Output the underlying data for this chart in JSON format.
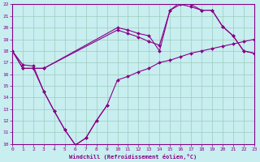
{
  "xlabel": "Windchill (Refroidissement éolien,°C)",
  "xlim": [
    0,
    23
  ],
  "ylim": [
    10,
    22
  ],
  "xticks": [
    0,
    1,
    2,
    3,
    4,
    5,
    6,
    7,
    8,
    9,
    10,
    11,
    12,
    13,
    14,
    15,
    16,
    17,
    18,
    19,
    20,
    21,
    22,
    23
  ],
  "yticks": [
    10,
    11,
    12,
    13,
    14,
    15,
    16,
    17,
    18,
    19,
    20,
    21,
    22
  ],
  "line_color": "#880088",
  "bg_color": "#c8eef0",
  "grid_color": "#99ccbb",
  "line1_x": [
    0,
    1,
    2,
    3,
    10,
    11,
    12,
    13,
    14,
    15,
    16,
    17,
    18,
    19,
    20,
    21,
    22,
    23
  ],
  "line1_y": [
    18,
    16.5,
    16.5,
    16.5,
    19.8,
    19.5,
    19.2,
    18.8,
    18.5,
    21.5,
    22.2,
    22.0,
    21.5,
    21.5,
    20.1,
    19.3,
    18.0,
    17.8
  ],
  "line2_x": [
    0,
    1,
    2,
    3,
    10,
    11,
    12,
    13,
    14,
    15,
    16,
    17,
    18,
    19,
    20,
    21,
    22,
    23
  ],
  "line2_y": [
    18,
    16.5,
    16.5,
    16.5,
    20.0,
    19.8,
    19.5,
    19.3,
    18.0,
    21.5,
    22.0,
    21.8,
    21.5,
    21.5,
    20.1,
    19.3,
    18.0,
    17.8
  ],
  "line3_x": [
    0,
    1,
    2,
    3,
    4,
    5,
    6,
    7,
    8,
    9,
    10,
    11,
    12,
    13,
    14,
    15,
    16,
    17,
    18,
    19,
    20,
    21,
    22,
    23
  ],
  "line3_y": [
    18,
    16.8,
    16.7,
    14.5,
    12.8,
    11.2,
    9.9,
    10.5,
    12.0,
    13.3,
    15.5,
    15.8,
    16.2,
    16.5,
    17.0,
    17.2,
    17.5,
    17.8,
    18.0,
    18.2,
    18.4,
    18.6,
    18.8,
    19.0
  ],
  "line4_x": [
    2,
    3,
    4,
    5,
    6,
    7,
    8,
    9
  ],
  "line4_y": [
    16.5,
    14.5,
    12.8,
    11.2,
    9.9,
    10.5,
    12.0,
    13.3
  ]
}
